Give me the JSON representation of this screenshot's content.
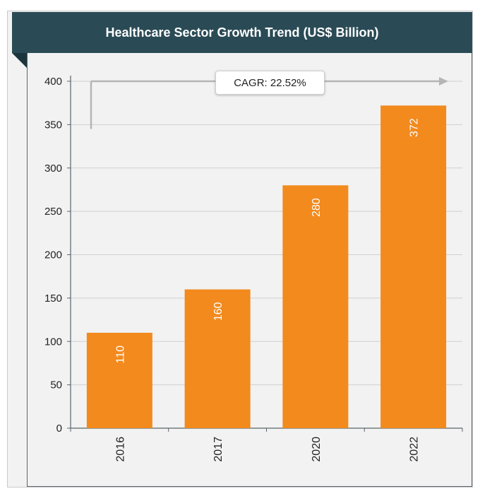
{
  "chart_data": {
    "type": "bar",
    "title": "Healthcare Sector Growth Trend (US$ Billion)",
    "categories": [
      "2016",
      "2017",
      "2020",
      "2022"
    ],
    "values": [
      110,
      160,
      280,
      372
    ],
    "ylim": [
      0,
      400
    ],
    "yticks": [
      0,
      50,
      100,
      150,
      200,
      250,
      300,
      350,
      400
    ],
    "annotation": "CAGR: 22.52%",
    "bar_color": "#f28a1e",
    "grid": true
  }
}
